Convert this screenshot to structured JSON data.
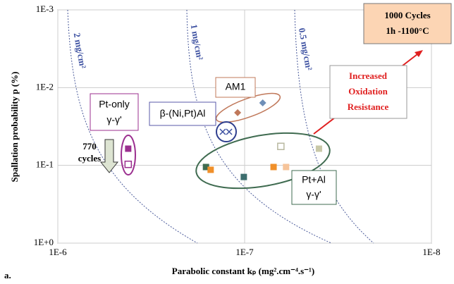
{
  "chart_data": {
    "type": "scatter",
    "y_axis_label": "Spallation probability p (%)",
    "x_axis_label": "Parabolic constant kₚ (mg².cm⁻⁴.s⁻¹)",
    "x_log": true,
    "y_log": true,
    "grid": true,
    "xlim": [
      1e-06,
      1e-08
    ],
    "ylim": [
      0.001,
      1
    ],
    "xticks": [
      {
        "value": 1e-06,
        "label": "1E-6"
      },
      {
        "value": 1e-07,
        "label": "1E-7"
      },
      {
        "value": 1e-08,
        "label": "1E-8"
      }
    ],
    "yticks": [
      {
        "value": 0.001,
        "label": "1E-3"
      },
      {
        "value": 0.01,
        "label": "1E-2"
      },
      {
        "value": 0.1,
        "label": "1E-1"
      },
      {
        "value": 1,
        "label": "1E+0"
      }
    ],
    "series": [
      {
        "color": "#9b2f8f",
        "marker": "square",
        "x": [
          4.2e-07
        ],
        "values": [
          0.061
        ]
      },
      {
        "color": "#9b2f8f",
        "marker": "open-square",
        "x": [
          4.2e-07
        ],
        "values": [
          0.097
        ]
      },
      {
        "color": "#c0785a",
        "marker": "diamond",
        "x": [
          1.09e-07
        ],
        "values": [
          0.021
        ]
      },
      {
        "color": "#6f8fb8",
        "marker": "diamond",
        "x": [
          8e-08
        ],
        "values": [
          0.0157
        ]
      },
      {
        "color": "#3b4fa0",
        "marker": "x",
        "x": [
          1.31e-07,
          1.21e-07
        ],
        "values": [
          0.037,
          0.037
        ]
      },
      {
        "color": "#3f6b50",
        "marker": "square",
        "x": [
          1.61e-07
        ],
        "values": [
          0.105
        ]
      },
      {
        "color": "#f0902a",
        "marker": "square",
        "x": [
          1.52e-07,
          7e-08
        ],
        "values": [
          0.114,
          0.105
        ]
      },
      {
        "color": "#3d6e6e",
        "marker": "square",
        "x": [
          1.01e-07
        ],
        "values": [
          0.141
        ]
      },
      {
        "color": "#f6c49a",
        "marker": "square",
        "x": [
          6e-08
        ],
        "values": [
          0.105
        ]
      },
      {
        "color": "#b8b8a0",
        "marker": "open-square",
        "x": [
          6.4e-08
        ],
        "values": [
          0.057
        ]
      },
      {
        "color": "#c8c8a8",
        "marker": "square",
        "x": [
          4e-08
        ],
        "values": [
          0.061
        ]
      }
    ],
    "annotations": {
      "iso_2": "2 mg/cm²",
      "iso_1": "1 mg/cm²",
      "iso_05": "0.5 mg/cm²",
      "conditions": [
        "1000 Cycles",
        "1h -1100°C"
      ],
      "resistance": [
        "Increased",
        "Oxidation",
        "Resistance"
      ],
      "am1": "AM1",
      "pt_only": [
        "Pt-only",
        "γ-γ'"
      ],
      "beta": "β-(Ni,Pt)Al",
      "pt_al": [
        "Pt+Al",
        "γ-γ'"
      ],
      "cycles": [
        "770",
        "cycles"
      ],
      "panel": "a."
    }
  }
}
